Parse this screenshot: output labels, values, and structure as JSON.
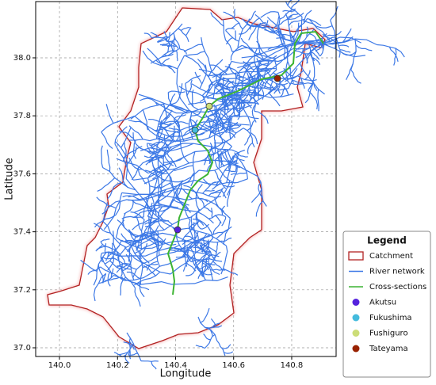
{
  "map": {
    "xlabel": "Longitude",
    "ylabel": "Latitude",
    "xlim": [
      139.918,
      140.953
    ],
    "ylim": [
      36.97,
      38.194
    ],
    "xticks": [
      {
        "value": 140.0,
        "label": "140.0"
      },
      140.2,
      140.4,
      140.6,
      140.8
    ],
    "yticks": [
      {
        "value": 37.0,
        "label": "37.0"
      },
      37.2,
      37.4,
      37.6,
      37.8,
      {
        "value": 38.0,
        "label": "38.0"
      }
    ],
    "grid": true,
    "legend": {
      "title": "Legend",
      "items": [
        {
          "name": "Catchment",
          "color": "#b22222"
        },
        {
          "name": "River network",
          "color": "#3c78e6"
        },
        {
          "name": "Cross-sections",
          "color": "#3cb432"
        }
      ]
    },
    "stations": [
      {
        "name": "Akutsu",
        "lon": 140.407,
        "lat": 37.407,
        "color": "#5522dd"
      },
      {
        "name": "Fukushima",
        "lon": 140.467,
        "lat": 37.751,
        "color": "#44bbdd"
      },
      {
        "name": "Fushiguro",
        "lon": 140.516,
        "lat": 37.833,
        "color": "#ccdd77"
      },
      {
        "name": "Tateyama",
        "lon": 140.751,
        "lat": 37.929,
        "color": "#992200"
      }
    ]
  }
}
